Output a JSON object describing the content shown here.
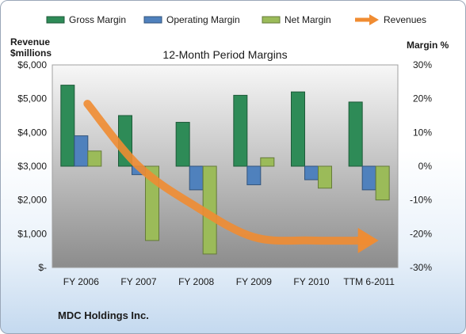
{
  "chart_data": {
    "type": "bar",
    "title": "12-Month Period Margins",
    "categories": [
      "FY 2006",
      "FY 2007",
      "FY 2008",
      "FY 2009",
      "FY 2010",
      "TTM 6-2011"
    ],
    "series": [
      {
        "name": "Gross Margin",
        "kind": "bar",
        "axis": "right",
        "color": "#2e8b57",
        "values": [
          24,
          15,
          13,
          21,
          22,
          19
        ]
      },
      {
        "name": "Operating Margin",
        "kind": "bar",
        "axis": "right",
        "color": "#4f81bd",
        "values": [
          9,
          -2.5,
          -7,
          -5.5,
          -4,
          -7
        ]
      },
      {
        "name": "Net Margin",
        "kind": "bar",
        "axis": "right",
        "color": "#9bbb59",
        "values": [
          4.5,
          -22,
          -26,
          2.5,
          -6.5,
          -10
        ]
      },
      {
        "name": "Revenues",
        "kind": "arrow",
        "axis": "left",
        "color": "#f08c32",
        "values": [
          4850,
          3000,
          1800,
          900,
          800,
          800
        ]
      }
    ],
    "left_axis": {
      "label_line1": "Revenue",
      "label_line2": "$millions",
      "min": 0,
      "max": 6000,
      "ticks": [
        "$-",
        "$1,000",
        "$2,000",
        "$3,000",
        "$4,000",
        "$5,000",
        "$6,000"
      ]
    },
    "right_axis": {
      "label": "Margin %",
      "min": -30,
      "max": 30,
      "ticks": [
        "-30%",
        "-20%",
        "-10%",
        "0%",
        "10%",
        "20%",
        "30%"
      ]
    },
    "grid": false,
    "legend_position": "top"
  },
  "footer": "MDC Holdings Inc."
}
